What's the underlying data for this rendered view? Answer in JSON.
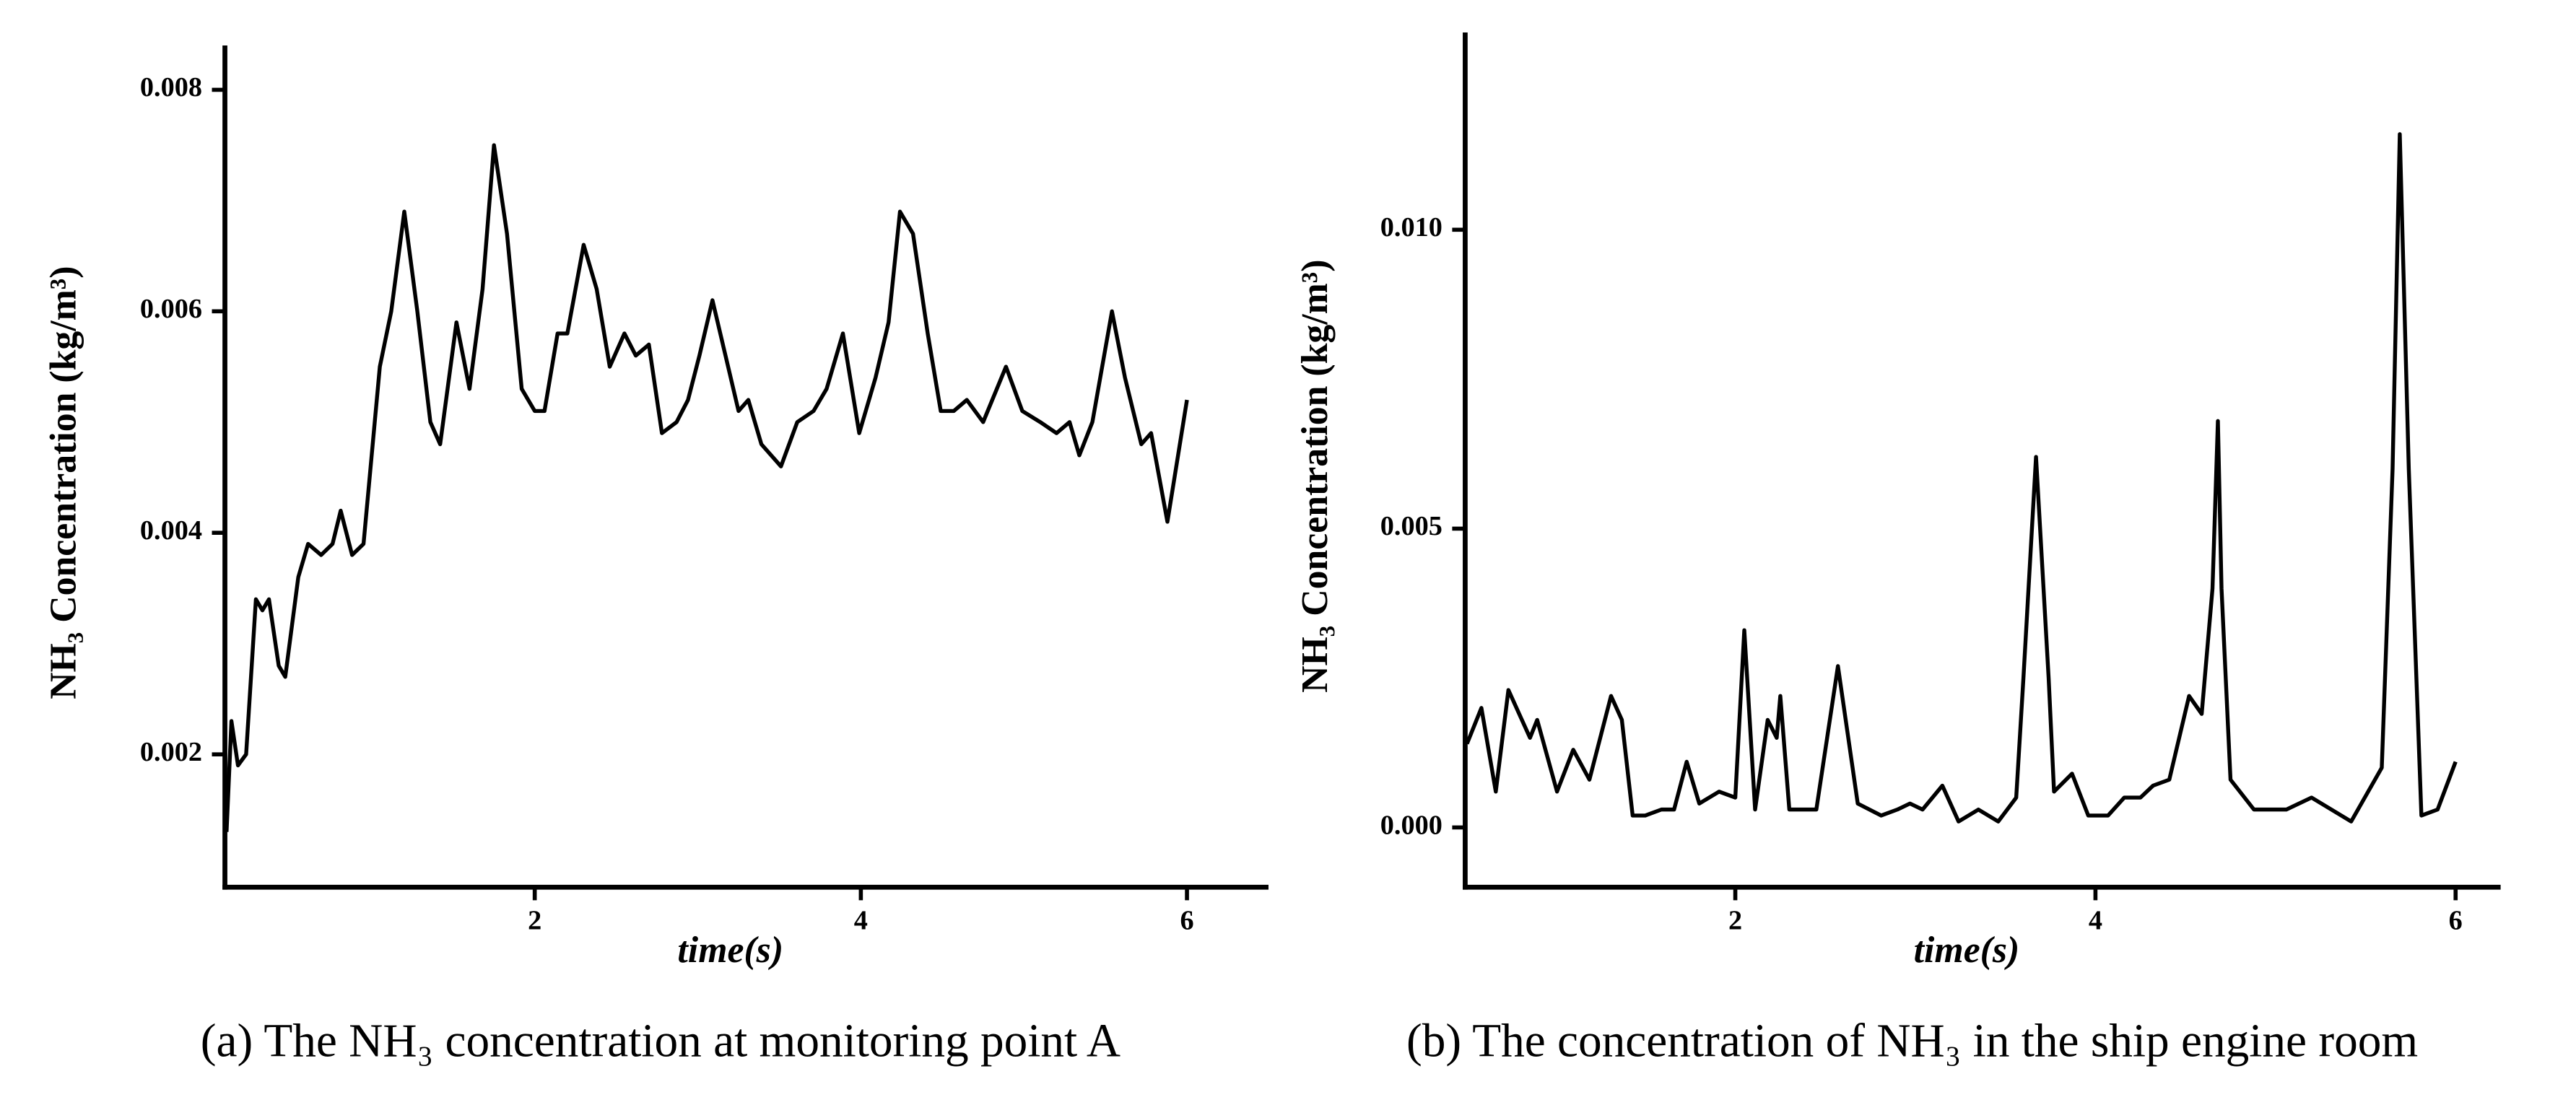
{
  "chart_data": [
    {
      "type": "line",
      "caption": "(a) The NH₃ concentration at monitoring point A",
      "xlabel": "time(s)",
      "ylabel": "NH₃ Concentration (kg/m³)",
      "xlim": [
        0.1,
        6.5
      ],
      "xticks": [
        2,
        4,
        6
      ],
      "ylim": [
        0.0008,
        0.0084
      ],
      "yticks": [
        0.002,
        0.004,
        0.006,
        0.008
      ],
      "series": [
        {
          "color": "#000000",
          "x": [
            0.11,
            0.14,
            0.18,
            0.23,
            0.29,
            0.33,
            0.37,
            0.43,
            0.47,
            0.55,
            0.61,
            0.69,
            0.76,
            0.81,
            0.88,
            0.95,
            1.05,
            1.12,
            1.2,
            1.28,
            1.36,
            1.42,
            1.52,
            1.6,
            1.68,
            1.75,
            1.83,
            1.92,
            2.0,
            2.06,
            2.14,
            2.2,
            2.3,
            2.38,
            2.46,
            2.55,
            2.62,
            2.7,
            2.78,
            2.87,
            2.94,
            3.01,
            3.09,
            3.17,
            3.25,
            3.31,
            3.39,
            3.51,
            3.61,
            3.71,
            3.79,
            3.89,
            3.99,
            4.09,
            4.17,
            4.24,
            4.32,
            4.41,
            4.49,
            4.57,
            4.65,
            4.75,
            4.89,
            4.99,
            5.1,
            5.2,
            5.28,
            5.34,
            5.42,
            5.54,
            5.62,
            5.72,
            5.78,
            5.88,
            6.0
          ],
          "values": [
            0.0013,
            0.0023,
            0.0019,
            0.002,
            0.0034,
            0.0033,
            0.0034,
            0.0028,
            0.0027,
            0.0036,
            0.0039,
            0.0038,
            0.0039,
            0.0042,
            0.0038,
            0.0039,
            0.0055,
            0.006,
            0.0069,
            0.006,
            0.005,
            0.0048,
            0.0059,
            0.0053,
            0.0062,
            0.0075,
            0.0067,
            0.0053,
            0.0051,
            0.0051,
            0.0058,
            0.0058,
            0.0066,
            0.0062,
            0.0055,
            0.0058,
            0.0056,
            0.0057,
            0.0049,
            0.005,
            0.0052,
            0.0056,
            0.0061,
            0.0056,
            0.0051,
            0.0052,
            0.0048,
            0.0046,
            0.005,
            0.0051,
            0.0053,
            0.0058,
            0.0049,
            0.0054,
            0.0059,
            0.0069,
            0.0067,
            0.0058,
            0.0051,
            0.0051,
            0.0052,
            0.005,
            0.0055,
            0.0051,
            0.005,
            0.0049,
            0.005,
            0.0047,
            0.005,
            0.006,
            0.0054,
            0.0048,
            0.0049,
            0.0041,
            0.0052
          ]
        }
      ]
    },
    {
      "type": "line",
      "caption": "(b) The concentration of NH₃ in the ship engine room",
      "xlabel": "time(s)",
      "ylabel": "NH₃ Concentration (kg/m³)",
      "xlim": [
        0.5,
        6.25
      ],
      "xticks": [
        2,
        4,
        6
      ],
      "ylim": [
        -0.001,
        0.0133
      ],
      "yticks": [
        {
          "value": 0,
          "label": "0.000"
        },
        0.005,
        {
          "value": 0.01,
          "label": "0.010"
        }
      ],
      "series": [
        {
          "color": "#000000",
          "x": [
            0.51,
            0.59,
            0.67,
            0.74,
            0.8,
            0.86,
            0.9,
            1.01,
            1.1,
            1.19,
            1.31,
            1.37,
            1.43,
            1.5,
            1.59,
            1.66,
            1.73,
            1.8,
            1.91,
            2.0,
            2.05,
            2.11,
            2.18,
            2.23,
            2.25,
            2.3,
            2.45,
            2.57,
            2.68,
            2.81,
            2.9,
            2.97,
            3.04,
            3.15,
            3.24,
            3.35,
            3.46,
            3.56,
            3.6,
            3.67,
            3.74,
            3.77,
            3.87,
            3.96,
            4.07,
            4.16,
            4.25,
            4.32,
            4.41,
            4.52,
            4.59,
            4.65,
            4.68,
            4.7,
            4.75,
            4.88,
            5.06,
            5.2,
            5.42,
            5.59,
            5.65,
            5.69,
            5.74,
            5.81,
            5.9,
            6.0
          ],
          "values": [
            0.0014,
            0.002,
            0.0006,
            0.0023,
            0.0019,
            0.0015,
            0.0018,
            0.0006,
            0.0013,
            0.0008,
            0.0022,
            0.0018,
            0.0002,
            0.0002,
            0.0003,
            0.0003,
            0.0011,
            0.0004,
            0.0006,
            0.0005,
            0.0033,
            0.0003,
            0.0018,
            0.0015,
            0.0022,
            0.0003,
            0.0003,
            0.0027,
            0.0004,
            0.0002,
            0.0003,
            0.0004,
            0.0003,
            0.0007,
            0.0001,
            0.0003,
            0.0001,
            0.0005,
            0.0025,
            0.0062,
            0.0025,
            0.0006,
            0.0009,
            0.0002,
            0.0002,
            0.0005,
            0.0005,
            0.0007,
            0.0008,
            0.0022,
            0.0019,
            0.004,
            0.0068,
            0.004,
            0.0008,
            0.0003,
            0.0003,
            0.0005,
            0.0001,
            0.001,
            0.006,
            0.0116,
            0.006,
            0.0002,
            0.0003,
            0.0011
          ]
        }
      ]
    }
  ]
}
